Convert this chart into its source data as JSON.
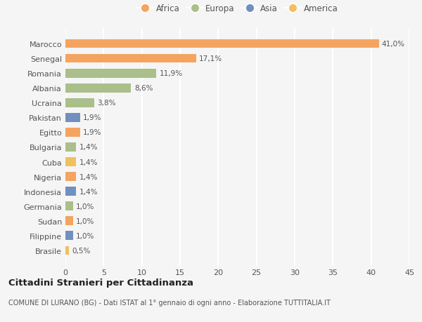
{
  "countries": [
    "Marocco",
    "Senegal",
    "Romania",
    "Albania",
    "Ucraina",
    "Pakistan",
    "Egitto",
    "Bulgaria",
    "Cuba",
    "Nigeria",
    "Indonesia",
    "Germania",
    "Sudan",
    "Filippine",
    "Brasile"
  ],
  "values": [
    41.0,
    17.1,
    11.9,
    8.6,
    3.8,
    1.9,
    1.9,
    1.4,
    1.4,
    1.4,
    1.4,
    1.0,
    1.0,
    1.0,
    0.5
  ],
  "labels": [
    "41,0%",
    "17,1%",
    "11,9%",
    "8,6%",
    "3,8%",
    "1,9%",
    "1,9%",
    "1,4%",
    "1,4%",
    "1,4%",
    "1,4%",
    "1,0%",
    "1,0%",
    "1,0%",
    "0,5%"
  ],
  "continents": [
    "Africa",
    "Africa",
    "Europa",
    "Europa",
    "Europa",
    "Asia",
    "Africa",
    "Europa",
    "America",
    "Africa",
    "Asia",
    "Europa",
    "Africa",
    "Asia",
    "America"
  ],
  "colors": {
    "Africa": "#F4A460",
    "Europa": "#AABF8A",
    "Asia": "#7090BF",
    "America": "#F0C060"
  },
  "xlim": [
    0,
    45
  ],
  "xticks": [
    0,
    5,
    10,
    15,
    20,
    25,
    30,
    35,
    40,
    45
  ],
  "legend_order": [
    "Africa",
    "Europa",
    "Asia",
    "America"
  ],
  "title": "Cittadini Stranieri per Cittadinanza",
  "subtitle": "COMUNE DI LURANO (BG) - Dati ISTAT al 1° gennaio di ogni anno - Elaborazione TUTTITALIA.IT",
  "background_color": "#F5F5F5",
  "bar_height": 0.6,
  "grid_color": "#FFFFFF",
  "text_color": "#555555",
  "label_fontsize": 7.5,
  "ytick_fontsize": 8.0,
  "xtick_fontsize": 8.0
}
